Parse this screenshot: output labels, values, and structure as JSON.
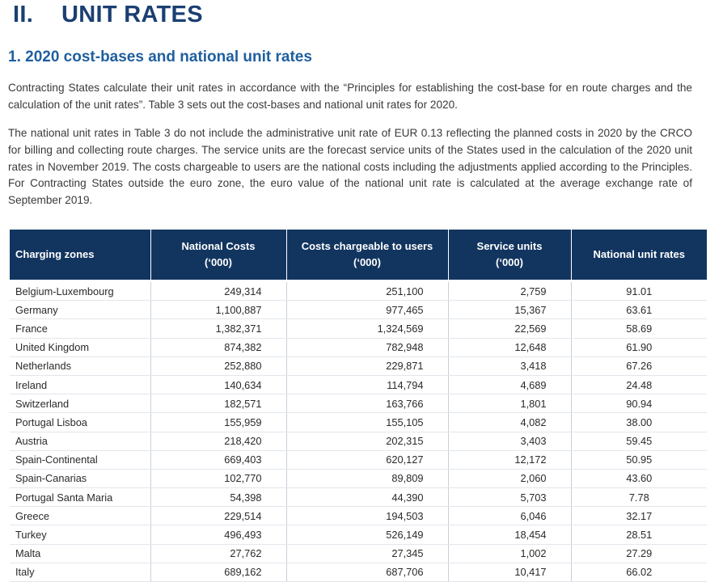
{
  "section": {
    "number": "II.",
    "title": "UNIT RATES"
  },
  "subsection": "1. 2020 cost-bases and national unit rates",
  "paragraphs": [
    "Contracting States calculate their unit rates in accordance with the “Principles for establishing the cost-base for en route charges and the calculation of the unit rates”. Table 3 sets out the cost-bases and national unit rates for 2020.",
    "The national unit rates in Table 3 do not include the administrative unit rate of EUR 0.13 reflecting the planned costs in 2020 by the CRCO for billing and collecting route charges. The service units are the forecast service units of the States used in the calculation of the 2020 unit rates in November 2019. The costs chargeable to users are the national costs including the adjustments applied according to the Principles.  For Contracting States outside the euro zone, the euro value of the national unit rate is calculated at the average exchange rate of September 2019."
  ],
  "table": {
    "headers": [
      {
        "line1": "Charging zones",
        "line2": ""
      },
      {
        "line1": "National Costs",
        "line2": "(‘000)"
      },
      {
        "line1": "Costs chargeable to users",
        "line2": "(‘000)"
      },
      {
        "line1": "Service units",
        "line2": "(‘000)"
      },
      {
        "line1": "National unit rates",
        "line2": ""
      }
    ],
    "rows": [
      [
        "Belgium-Luxembourg",
        "249,314",
        "251,100",
        "2,759",
        "91.01"
      ],
      [
        "Germany",
        "1,100,887",
        "977,465",
        "15,367",
        "63.61"
      ],
      [
        "France",
        "1,382,371",
        "1,324,569",
        "22,569",
        "58.69"
      ],
      [
        "United Kingdom",
        "874,382",
        "782,948",
        "12,648",
        "61.90"
      ],
      [
        "Netherlands",
        "252,880",
        "229,871",
        "3,418",
        "67.26"
      ],
      [
        "Ireland",
        "140,634",
        "114,794",
        "4,689",
        "24.48"
      ],
      [
        "Switzerland",
        "182,571",
        "163,766",
        "1,801",
        "90.94"
      ],
      [
        "Portugal Lisboa",
        "155,959",
        "155,105",
        "4,082",
        "38.00"
      ],
      [
        "Austria",
        "218,420",
        "202,315",
        "3,403",
        "59.45"
      ],
      [
        "Spain-Continental",
        "669,403",
        "620,127",
        "12,172",
        "50.95"
      ],
      [
        "Spain-Canarias",
        "102,770",
        "89,809",
        "2,060",
        "43.60"
      ],
      [
        "Portugal Santa Maria",
        "54,398",
        "44,390",
        "5,703",
        "7.78"
      ],
      [
        "Greece",
        "229,514",
        "194,503",
        "6,046",
        "32.17"
      ],
      [
        "Turkey",
        "496,493",
        "526,149",
        "18,454",
        "28.51"
      ],
      [
        "Malta",
        "27,762",
        "27,345",
        "1,002",
        "27.29"
      ],
      [
        "Italy",
        "689,162",
        "687,706",
        "10,417",
        "66.02"
      ]
    ]
  }
}
